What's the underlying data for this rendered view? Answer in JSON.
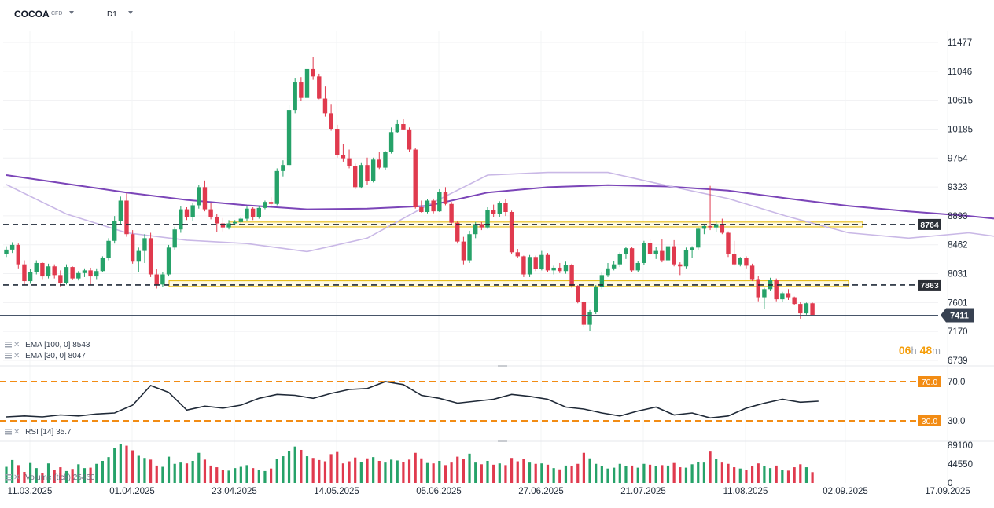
{
  "header": {
    "symbol": "COCOA",
    "symbol_type": "CFD",
    "timeframe": "D1"
  },
  "colors": {
    "bull": "#26a269",
    "bear": "#e03a4e",
    "ema100": "#7b45b8",
    "ema30": "#c9b8e6",
    "level_line": "#1f2937",
    "zone": "#e6b800",
    "rsi_level": "#f28c14",
    "last_price_bg": "#374151",
    "timer": "#f59e0b"
  },
  "indicators": {
    "ema100": {
      "name": "EMA",
      "params": "[100,  0]",
      "value": "8543"
    },
    "ema30": {
      "name": "EMA",
      "params": "[30,  0]",
      "value": "8047"
    },
    "rsi": {
      "name": "RSI",
      "params": "[14]",
      "value": "35.7"
    },
    "volume": {
      "name": "Volume",
      "params": "(tick)",
      "value": "25460"
    }
  },
  "timer": {
    "h": "06",
    "h_unit": "h",
    "m": "48",
    "m_unit": "m"
  },
  "chart_data": [
    {
      "type": "candlestick",
      "y_ticks": [
        "11477",
        "11046",
        "10615",
        "10185",
        "9754",
        "9323",
        "8893",
        "8462",
        "8031",
        "7601",
        "7170",
        "6739"
      ],
      "ylim": [
        6739,
        11477
      ],
      "x_ticks": [
        "11.03.2025",
        "01.04.2025",
        "23.04.2025",
        "14.05.2025",
        "05.06.2025",
        "27.06.2025",
        "21.07.2025",
        "11.08.2025",
        "02.09.2025",
        "17.09.2025"
      ],
      "levels": [
        {
          "value": 8764,
          "label": "8764",
          "style": "dashed"
        },
        {
          "value": 7863,
          "label": "7863",
          "style": "dashed"
        }
      ],
      "zones": [
        [
          8728,
          8800
        ],
        [
          7840,
          7925
        ]
      ],
      "last_price": {
        "value": 7411,
        "label": "7411"
      },
      "series": [
        {
          "name": "EMA [100,  0]",
          "x": [
            0,
            10,
            20,
            30,
            40,
            50,
            60,
            70,
            80,
            90,
            100,
            110,
            120,
            130,
            140,
            150,
            160,
            170,
            180,
            185
          ],
          "y": [
            9500,
            9370,
            9240,
            9130,
            9050,
            8990,
            9000,
            9040,
            9240,
            9320,
            9350,
            9330,
            9270,
            9150,
            9040,
            8960,
            8890,
            8800,
            8720,
            8620
          ]
        },
        {
          "name": "EMA [30,  0]",
          "x": [
            0,
            10,
            20,
            30,
            40,
            50,
            60,
            70,
            80,
            90,
            100,
            110,
            120,
            130,
            140,
            150,
            160,
            170,
            180,
            185
          ],
          "y": [
            9360,
            8920,
            8640,
            8530,
            8480,
            8360,
            8560,
            9050,
            9500,
            9540,
            9540,
            9340,
            9150,
            8880,
            8640,
            8560,
            8640,
            8520,
            8240,
            8050
          ]
        }
      ],
      "candles": [
        [
          8330,
          8440,
          8280,
          8390
        ],
        [
          8390,
          8500,
          8340,
          8460
        ],
        [
          8460,
          8480,
          8110,
          8170
        ],
        [
          8170,
          8230,
          7870,
          7920
        ],
        [
          7920,
          8100,
          7880,
          8060
        ],
        [
          8060,
          8230,
          8020,
          8190
        ],
        [
          8190,
          8200,
          7950,
          7990
        ],
        [
          7990,
          8180,
          7960,
          8140
        ],
        [
          8140,
          8170,
          7960,
          8010
        ],
        [
          8010,
          8080,
          7830,
          7890
        ],
        [
          7890,
          8170,
          7870,
          8130
        ],
        [
          8130,
          8140,
          7940,
          7960
        ],
        [
          7960,
          8070,
          7930,
          8040
        ],
        [
          8040,
          8110,
          7980,
          8080
        ],
        [
          8080,
          8120,
          7870,
          7990
        ],
        [
          7990,
          8110,
          7950,
          8070
        ],
        [
          8070,
          8290,
          8050,
          8270
        ],
        [
          8270,
          8560,
          8230,
          8520
        ],
        [
          8520,
          8890,
          8480,
          8810
        ],
        [
          8810,
          9180,
          8770,
          9120
        ],
        [
          9120,
          9230,
          8580,
          8620
        ],
        [
          8620,
          8680,
          8180,
          8210
        ],
        [
          8210,
          8420,
          8050,
          8370
        ],
        [
          8370,
          8620,
          8190,
          8560
        ],
        [
          8560,
          8640,
          7980,
          8020
        ],
        [
          8020,
          8100,
          7810,
          7870
        ],
        [
          7870,
          8060,
          7830,
          8020
        ],
        [
          8020,
          8460,
          7990,
          8420
        ],
        [
          8420,
          8730,
          8390,
          8690
        ],
        [
          8690,
          9040,
          8640,
          8990
        ],
        [
          8990,
          9020,
          8830,
          8870
        ],
        [
          8870,
          9080,
          8820,
          9050
        ],
        [
          9050,
          9350,
          9000,
          9320
        ],
        [
          9320,
          9420,
          8960,
          8990
        ],
        [
          8990,
          9090,
          8840,
          8880
        ],
        [
          8880,
          8920,
          8650,
          8780
        ],
        [
          8780,
          8860,
          8660,
          8720
        ],
        [
          8720,
          8830,
          8690,
          8780
        ],
        [
          8780,
          8830,
          8750,
          8800
        ],
        [
          8800,
          8870,
          8770,
          8850
        ],
        [
          8850,
          9030,
          8820,
          9000
        ],
        [
          9000,
          9020,
          8830,
          8880
        ],
        [
          8880,
          9040,
          8850,
          9010
        ],
        [
          9010,
          9120,
          8990,
          9100
        ],
        [
          9100,
          9170,
          9040,
          9070
        ],
        [
          9070,
          9600,
          9050,
          9560
        ],
        [
          9560,
          9720,
          9480,
          9650
        ],
        [
          9650,
          10540,
          9620,
          10470
        ],
        [
          10470,
          10950,
          10420,
          10880
        ],
        [
          10880,
          10960,
          10610,
          10650
        ],
        [
          10650,
          11130,
          10620,
          11080
        ],
        [
          11080,
          11260,
          10920,
          10970
        ],
        [
          10970,
          11010,
          10630,
          10640
        ],
        [
          10640,
          10820,
          10370,
          10420
        ],
        [
          10420,
          10550,
          10160,
          10190
        ],
        [
          10190,
          10250,
          9760,
          9800
        ],
        [
          9800,
          9960,
          9700,
          9750
        ],
        [
          9750,
          9880,
          9600,
          9630
        ],
        [
          9630,
          9670,
          9290,
          9320
        ],
        [
          9320,
          9690,
          9300,
          9650
        ],
        [
          9650,
          9760,
          9360,
          9410
        ],
        [
          9410,
          9760,
          9390,
          9730
        ],
        [
          9730,
          9850,
          9590,
          9610
        ],
        [
          9610,
          9860,
          9580,
          9840
        ],
        [
          9840,
          10210,
          9820,
          10140
        ],
        [
          10140,
          10320,
          10120,
          10260
        ],
        [
          10260,
          10340,
          10170,
          10180
        ],
        [
          10180,
          10210,
          9840,
          9880
        ],
        [
          9880,
          9900,
          9000,
          9020
        ],
        [
          9020,
          9120,
          8940,
          8950
        ],
        [
          8950,
          9140,
          8930,
          9120
        ],
        [
          9120,
          9150,
          8930,
          8960
        ],
        [
          8960,
          9290,
          8950,
          9250
        ],
        [
          9250,
          9320,
          9050,
          9070
        ],
        [
          9070,
          9100,
          8760,
          8790
        ],
        [
          8790,
          8820,
          8480,
          8510
        ],
        [
          8510,
          8580,
          8170,
          8230
        ],
        [
          8230,
          8670,
          8190,
          8620
        ],
        [
          8620,
          8800,
          8560,
          8770
        ],
        [
          8770,
          8800,
          8680,
          8720
        ],
        [
          8720,
          9020,
          8700,
          8980
        ],
        [
          8980,
          9060,
          8870,
          8920
        ],
        [
          8920,
          9110,
          8880,
          9080
        ],
        [
          9080,
          9140,
          8890,
          8950
        ],
        [
          8950,
          8970,
          8320,
          8350
        ],
        [
          8350,
          8400,
          8270,
          8290
        ],
        [
          8290,
          8300,
          7980,
          8020
        ],
        [
          8020,
          8310,
          7980,
          8280
        ],
        [
          8280,
          8300,
          8070,
          8100
        ],
        [
          8100,
          8370,
          8080,
          8310
        ],
        [
          8310,
          8340,
          8050,
          8080
        ],
        [
          8080,
          8150,
          8020,
          8120
        ],
        [
          8120,
          8190,
          8040,
          8070
        ],
        [
          8070,
          8210,
          8030,
          8160
        ],
        [
          8160,
          8180,
          7820,
          7850
        ],
        [
          7850,
          7860,
          7590,
          7610
        ],
        [
          7610,
          7620,
          7240,
          7270
        ],
        [
          7270,
          7490,
          7180,
          7460
        ],
        [
          7460,
          7860,
          7430,
          7830
        ],
        [
          7830,
          8050,
          7800,
          8010
        ],
        [
          8010,
          8190,
          7980,
          8110
        ],
        [
          8110,
          8220,
          8080,
          8170
        ],
        [
          8170,
          8350,
          8130,
          8320
        ],
        [
          8320,
          8430,
          8250,
          8410
        ],
        [
          8410,
          8430,
          8050,
          8080
        ],
        [
          8080,
          8220,
          8050,
          8190
        ],
        [
          8190,
          8520,
          8160,
          8490
        ],
        [
          8490,
          8540,
          8310,
          8320
        ],
        [
          8320,
          8430,
          8250,
          8370
        ],
        [
          8370,
          8540,
          8200,
          8230
        ],
        [
          8230,
          8500,
          8210,
          8440
        ],
        [
          8440,
          8530,
          8140,
          8170
        ],
        [
          8170,
          8200,
          8010,
          8140
        ],
        [
          8140,
          8420,
          8110,
          8380
        ],
        [
          8380,
          8440,
          8260,
          8420
        ],
        [
          8420,
          8720,
          8390,
          8700
        ],
        [
          8700,
          8760,
          8620,
          8740
        ],
        [
          8740,
          9340,
          8680,
          8720
        ],
        [
          8720,
          8810,
          8650,
          8770
        ],
        [
          8770,
          8850,
          8620,
          8640
        ],
        [
          8640,
          8660,
          8280,
          8330
        ],
        [
          8330,
          8520,
          8150,
          8170
        ],
        [
          8170,
          8280,
          8140,
          8270
        ],
        [
          8270,
          8290,
          8110,
          8150
        ],
        [
          8150,
          8180,
          7920,
          7950
        ],
        [
          7950,
          8000,
          7620,
          7680
        ],
        [
          7680,
          7820,
          7510,
          7800
        ],
        [
          7800,
          7970,
          7780,
          7940
        ],
        [
          7940,
          7960,
          7620,
          7650
        ],
        [
          7650,
          7760,
          7610,
          7740
        ],
        [
          7740,
          7800,
          7640,
          7680
        ],
        [
          7680,
          7690,
          7560,
          7580
        ],
        [
          7580,
          7610,
          7360,
          7440
        ],
        [
          7440,
          7600,
          7420,
          7590
        ],
        [
          7590,
          7600,
          7400,
          7411
        ]
      ]
    },
    {
      "type": "line",
      "name": "RSI [14]",
      "y_ticks": [
        "70.0",
        "30.0"
      ],
      "ylim": [
        29,
        72
      ],
      "levels": [
        {
          "value": 70,
          "label": "70.0"
        },
        {
          "value": 30,
          "label": "30.0"
        }
      ],
      "last_value": 35.7,
      "x": [
        0,
        3,
        6,
        9,
        12,
        15,
        18,
        21,
        24,
        27,
        30,
        33,
        36,
        39,
        42,
        45,
        48,
        51,
        54,
        57,
        60,
        63,
        66,
        69,
        72,
        75,
        78,
        81,
        84,
        87,
        90,
        93,
        96,
        99,
        102,
        105,
        108,
        111,
        114,
        117,
        120,
        123,
        126,
        129,
        132,
        135
      ],
      "y": [
        34,
        35,
        34,
        36,
        35,
        37,
        38,
        46,
        66,
        59,
        41,
        45,
        43,
        46,
        53,
        57,
        56,
        53,
        58,
        62,
        63,
        70,
        67,
        56,
        53,
        48,
        50,
        52,
        57,
        55,
        52,
        44,
        42,
        38,
        35,
        40,
        44,
        36,
        38,
        33,
        35,
        43,
        48,
        52,
        49,
        50
      ]
    },
    {
      "type": "bar",
      "name": "Volume (tick)",
      "y_ticks": [
        "89100",
        "44550",
        "0"
      ],
      "ylim": [
        0,
        95000
      ],
      "last_value": 25460,
      "values_note_bull_bear": "colored by candle direction",
      "values": [
        38000,
        54000,
        42000,
        26000,
        47000,
        35000,
        24000,
        46000,
        31000,
        37000,
        28000,
        33000,
        44000,
        35000,
        36000,
        45000,
        52000,
        61000,
        83000,
        92000,
        88000,
        77000,
        64000,
        59000,
        55000,
        41000,
        38000,
        62000,
        45000,
        48000,
        46000,
        52000,
        71000,
        55000,
        41000,
        37000,
        30000,
        29000,
        35000,
        38000,
        42000,
        35000,
        31000,
        28000,
        34000,
        57000,
        63000,
        75000,
        86000,
        78000,
        63000,
        59000,
        54000,
        51000,
        68000,
        73000,
        46000,
        51000,
        60000,
        49000,
        58000,
        61000,
        52000,
        48000,
        55000,
        53000,
        49000,
        55000,
        71000,
        58000,
        47000,
        46000,
        52000,
        42000,
        48000,
        62000,
        57000,
        69000,
        48000,
        44000,
        52000,
        43000,
        46000,
        42000,
        59000,
        51000,
        56000,
        48000,
        45000,
        46000,
        43000,
        35000,
        32000,
        41000,
        39000,
        45000,
        71000,
        58000,
        45000,
        39000,
        34000,
        36000,
        45000,
        40000,
        41000,
        36000,
        45000,
        43000,
        39000,
        42000,
        41000,
        47000,
        37000,
        36000,
        44000,
        50000,
        48000,
        74000,
        56000,
        48000,
        45000,
        37000,
        34000,
        31000,
        40000,
        46000,
        39000,
        35000,
        41000,
        30000,
        29000,
        37000,
        44000,
        37000,
        25460
      ]
    }
  ]
}
